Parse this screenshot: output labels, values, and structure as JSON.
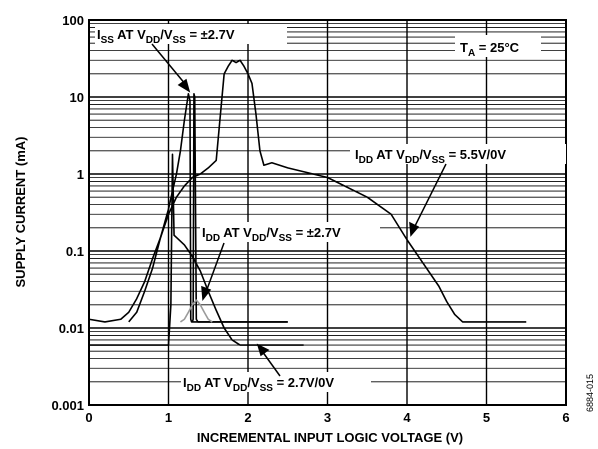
{
  "chart_data": {
    "type": "line",
    "xlabel": "INCREMENTAL INPUT LOGIC VOLTAGE (V)",
    "ylabel": "SUPPLY CURRENT (mA)",
    "xlim": [
      0,
      6
    ],
    "ylim": [
      0.001,
      100
    ],
    "y_scale": "log",
    "grid": true,
    "x_ticks": [
      "0",
      "1",
      "2",
      "3",
      "4",
      "5",
      "6"
    ],
    "y_ticks": [
      "0.001",
      "0.01",
      "0.1",
      "1",
      "10",
      "100"
    ],
    "annotations": {
      "ta": {
        "main": "T",
        "sub": "A",
        "rest": " = 25°C"
      },
      "iss": {
        "p1": "I",
        "s1": "SS",
        "p2": " AT V",
        "s2": "DD",
        "p3": "/V",
        "s3": "SS",
        "p4": " = ±2.7V"
      },
      "idd55": {
        "p1": "I",
        "s1": "DD",
        "p2": " AT V",
        "s2": "DD",
        "p3": "/V",
        "s3": "SS",
        "p4": " = 5.5V/0V"
      },
      "iddpm": {
        "p1": "I",
        "s1": "DD",
        "p2": " AT V",
        "s2": "DD",
        "p3": "/V",
        "s3": "SS",
        "p4": " = ±2.7V"
      },
      "idd27": {
        "p1": "I",
        "s1": "DD",
        "p2": " AT V",
        "s2": "DD",
        "p3": "/V",
        "s3": "SS",
        "p4": " = 2.7V/0V"
      }
    },
    "figure_id": "6884-015",
    "series": [
      {
        "color": "#000000",
        "x": [
          0,
          0.2,
          0.4,
          0.5,
          0.6,
          0.7,
          0.8,
          0.9,
          1.0,
          1.1,
          1.2,
          1.3,
          1.4,
          1.5,
          1.6,
          1.7,
          1.75,
          1.8,
          1.85,
          1.9,
          1.95,
          2.0,
          2.05,
          2.1,
          2.15,
          2.2,
          2.3,
          2.5,
          3.0,
          3.5,
          3.8,
          4.0,
          4.2,
          4.4,
          4.5,
          4.6,
          4.7,
          4.8,
          5.0,
          5.5
        ],
        "values": [
          0.013,
          0.012,
          0.013,
          0.016,
          0.024,
          0.04,
          0.08,
          0.15,
          0.3,
          0.5,
          0.7,
          0.9,
          1.0,
          1.2,
          1.5,
          20,
          25,
          30,
          28,
          30,
          25,
          20,
          15,
          6,
          2,
          1.3,
          1.4,
          1.2,
          0.9,
          0.5,
          0.3,
          0.14,
          0.07,
          0.035,
          0.022,
          0.015,
          0.012,
          0.012,
          0.012,
          0.012
        ]
      },
      {
        "color": "#000000",
        "x": [
          0,
          0.5,
          0.6,
          0.8,
          1.0,
          1.03,
          1.05,
          1.07,
          1.1,
          1.2,
          1.3,
          1.4,
          1.5,
          1.6,
          1.7,
          1.8,
          1.9,
          2.0,
          2.5,
          2.7
        ],
        "values": [
          0.006,
          0.006,
          0.006,
          0.006,
          0.006,
          0.02,
          1.8,
          0.16,
          0.15,
          0.12,
          0.085,
          0.055,
          0.03,
          0.017,
          0.01,
          0.007,
          0.006,
          0.006,
          0.006,
          0.006
        ]
      },
      {
        "color": "#000000",
        "x": [
          0.5,
          0.6,
          0.7,
          0.8,
          0.9,
          1.0,
          1.05,
          1.1,
          1.15,
          1.2,
          1.25,
          1.27,
          1.28,
          1.29,
          1.3,
          2.5
        ],
        "values": [
          0.012,
          0.016,
          0.03,
          0.06,
          0.15,
          0.35,
          0.6,
          1.0,
          2.0,
          5.0,
          11,
          9,
          0.013,
          0.012,
          0.012,
          0.012
        ]
      },
      {
        "color": "#000000",
        "x": [
          1.3,
          1.31,
          1.32,
          1.33,
          1.35,
          1.37,
          1.4,
          2.5
        ],
        "values": [
          0.012,
          0.013,
          11,
          10,
          0.013,
          0.012,
          0.012,
          0.012
        ]
      },
      {
        "color": "#9a9a9a",
        "x": [
          1.15,
          1.2,
          1.25,
          1.3,
          1.35,
          1.4,
          1.45,
          1.5,
          1.55
        ],
        "values": [
          0.012,
          0.013,
          0.016,
          0.02,
          0.023,
          0.02,
          0.016,
          0.013,
          0.012
        ]
      }
    ]
  }
}
